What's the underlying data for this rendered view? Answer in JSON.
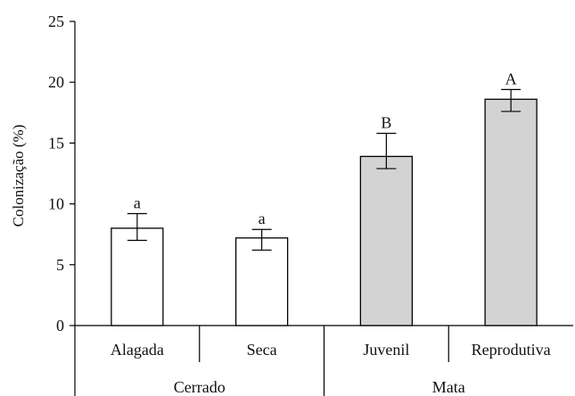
{
  "chart_data": {
    "type": "bar",
    "title": "",
    "xlabel": "",
    "ylabel": "Colonização (%)",
    "ylim": [
      0,
      25
    ],
    "yticks": [
      0,
      5,
      10,
      15,
      20,
      25
    ],
    "grid": false,
    "categories": [
      "Alagada",
      "Seca",
      "Juvenil",
      "Reprodutiva"
    ],
    "groups": [
      {
        "label": "Cerrado",
        "members": [
          "Alagada",
          "Seca"
        ]
      },
      {
        "label": "Mata",
        "members": [
          "Juvenil",
          "Reprodutiva"
        ]
      }
    ],
    "values": [
      8.0,
      7.2,
      13.9,
      18.6
    ],
    "error_upper": [
      9.2,
      7.9,
      15.8,
      19.4
    ],
    "error_lower": [
      7.0,
      6.2,
      12.9,
      17.6
    ],
    "significance_letters": [
      "a",
      "a",
      "B",
      "A"
    ],
    "colors": {
      "fill": [
        "#ffffff",
        "#ffffff",
        "#d3d3d3",
        "#d3d3d3"
      ],
      "stroke": "#000000"
    }
  }
}
